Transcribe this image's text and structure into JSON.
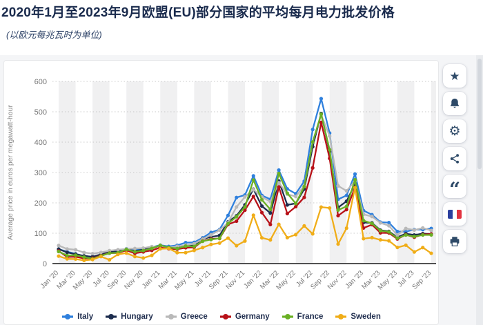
{
  "header": {
    "title": "2020年1月至2023年9月欧盟(EU)部分国家的平均每月电力批发价格",
    "subtitle": "(以欧元每兆瓦时为单位)"
  },
  "toolbar": {
    "buttons": [
      {
        "icon": "star-icon"
      },
      {
        "icon": "bell-icon"
      },
      {
        "icon": "gear-icon"
      },
      {
        "icon": "share-icon"
      },
      {
        "icon": "quote-icon"
      },
      {
        "icon": "french-flag-icon"
      },
      {
        "icon": "printer-icon"
      }
    ]
  },
  "chart_data": {
    "type": "line",
    "title": "",
    "ylabel": "Average price in euros per megawatt-hour",
    "ylim": [
      0,
      600
    ],
    "yticks": [
      0,
      100,
      200,
      300,
      400,
      500,
      600
    ],
    "grid": "horizontal dotted gridlines every 100; alternating light vertical bands every 2 months",
    "legend_position": "bottom",
    "x_unit": "monthly data points, Jan 2020 - Sep 2023 (45 points per series)",
    "x_tick_labels": [
      "Jan '20",
      "Mar '20",
      "May '20",
      "Jul '20",
      "Sep '20",
      "Nov '20",
      "Jan '21",
      "Mar '21",
      "May '21",
      "Jul '21",
      "Sep '21",
      "Nov '21",
      "Jan '22",
      "Mar '22",
      "May '22",
      "Jul '22",
      "Sep '22",
      "Nov '22",
      "Jan '23",
      "Mar '23",
      "May '23",
      "Jul '23",
      "Sep '23"
    ],
    "series": [
      {
        "name": "Italy",
        "color": "#2f80dd",
        "values": [
          47.5,
          39.3,
          32.0,
          24.8,
          21.8,
          28.0,
          38.0,
          40.3,
          48.8,
          43.6,
          48.8,
          54.0,
          60.7,
          56.6,
          60.4,
          69.0,
          69.9,
          84.8,
          102.7,
          112.4,
          158.6,
          217.6,
          225.9,
          288.9,
          224.5,
          211.7,
          308.1,
          246.0,
          230.1,
          271.3,
          441.7,
          543.2,
          429.9,
          211.5,
          224.5,
          294.9,
          174.5,
          161.1,
          136.4,
          134.9,
          105.7,
          105.3,
          112.1,
          111.9,
          115.7
        ]
      },
      {
        "name": "Hungary",
        "color": "#1d2d4e",
        "values": [
          47.9,
          36.7,
          31.3,
          25.4,
          22.6,
          30.5,
          37.8,
          39.9,
          46.5,
          41.5,
          45.7,
          51.1,
          58.5,
          52.0,
          51.3,
          57.6,
          60.4,
          81.5,
          87.7,
          92.6,
          137.4,
          157.2,
          193.5,
          245.2,
          189.3,
          166.5,
          272.0,
          193.2,
          198.2,
          245.4,
          384.9,
          494.5,
          368.8,
          184.8,
          205.4,
          262.5,
          135.4,
          134.2,
          110.0,
          106.1,
          86.8,
          98.3,
          94.2,
          98.6,
          97.4
        ]
      },
      {
        "name": "Greece",
        "color": "#b9b9b9",
        "values": [
          59.6,
          48.2,
          45.6,
          36.4,
          32.8,
          36.8,
          42.7,
          45.7,
          48.3,
          49.8,
          51.0,
          56.1,
          56.2,
          52.6,
          56.9,
          61.0,
          65.3,
          80.6,
          94.6,
          110.3,
          134.8,
          186.4,
          219.9,
          244.0,
          219.4,
          204.0,
          266.6,
          228.5,
          221.0,
          255.8,
          399.9,
          490.1,
          420.1,
          256.0,
          239.6,
          271.8,
          162.2,
          155.1,
          134.1,
          124.8,
          93.7,
          115.6,
          110.5,
          117.4,
          108.9
        ]
      },
      {
        "name": "Germany",
        "color": "#b81118",
        "values": [
          41.6,
          21.9,
          22.5,
          17.1,
          17.6,
          26.4,
          34.6,
          34.9,
          43.7,
          33.9,
          38.6,
          43.5,
          52.8,
          48.8,
          47.5,
          52.1,
          53.3,
          74.2,
          81.4,
          82.7,
          128.8,
          139.6,
          176.1,
          221.1,
          167.9,
          128.7,
          252.2,
          164.6,
          187.6,
          218.0,
          315.3,
          465.2,
          346.4,
          157.8,
          177.9,
          251.2,
          117.2,
          128.3,
          101.2,
          101.0,
          81.1,
          95.2,
          86.9,
          95.6,
          97.3
        ]
      },
      {
        "name": "France",
        "color": "#6ab024",
        "values": [
          39.8,
          26.6,
          27.7,
          21.3,
          15.5,
          25.6,
          34.3,
          35.7,
          46.7,
          39.0,
          42.7,
          50.0,
          60.3,
          53.4,
          49.5,
          57.7,
          56.6,
          73.5,
          79.2,
          83.3,
          132.0,
          154.3,
          186.5,
          275.4,
          209.9,
          178.4,
          296.6,
          231.9,
          197.8,
          253.6,
          400.7,
          492.3,
          374.8,
          176.2,
          188.5,
          276.1,
          141.5,
          132.4,
          108.3,
          104.4,
          83.5,
          94.1,
          89.1,
          94.3,
          94.4
        ]
      },
      {
        "name": "Sweden",
        "color": "#f0ad18",
        "values": [
          24.6,
          15.5,
          14.9,
          10.5,
          13.3,
          23.1,
          12.4,
          30.3,
          34.6,
          23.2,
          18.5,
          27.0,
          48.7,
          49.9,
          35.9,
          36.0,
          43.4,
          52.8,
          63.1,
          67.6,
          84.0,
          59.1,
          74.4,
          159.3,
          84.8,
          77.9,
          129.4,
          85.4,
          95.5,
          124.1,
          97.9,
          186.1,
          183.1,
          64.3,
          116.8,
          249.9,
          82.1,
          85.5,
          78.2,
          75.0,
          53.2,
          60.6,
          38.3,
          52.9,
          33.9
        ]
      }
    ]
  }
}
